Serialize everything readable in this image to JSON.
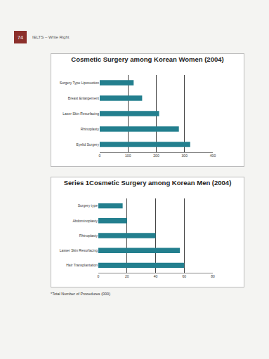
{
  "page": {
    "number": "74",
    "header": "IELTS – Write Right",
    "note": "*Total Number of Procedures (000)"
  },
  "chart_data": [
    {
      "type": "bar",
      "orientation": "horizontal",
      "title": "Cosmetic Surgery among Korean Women (2004)",
      "categories": [
        "Surgery Type Liposuction",
        "Breast Enlargement",
        "Laser Skin Resurfacing",
        "Rhinoplasty",
        "Eyelid Surgery"
      ],
      "values": [
        120,
        150,
        210,
        280,
        320
      ],
      "color": "#237f8e",
      "xlim": [
        0,
        400
      ],
      "xticks": [
        0,
        100,
        200,
        300,
        400
      ],
      "grid": true
    },
    {
      "type": "bar",
      "orientation": "horizontal",
      "title": "Series 1Cosmetic Surgery among Korean Men (2004)",
      "categories": [
        "Surgery type",
        "Abdominoplasty",
        "Rhinoplasty",
        "Lasser Skin Resurfacing",
        "Hair Transplantation"
      ],
      "values": [
        17,
        20,
        40,
        57,
        60
      ],
      "color": "#237f8e",
      "xlim": [
        0,
        80
      ],
      "xticks": [
        0,
        20,
        40,
        60,
        80
      ],
      "grid": true
    }
  ]
}
